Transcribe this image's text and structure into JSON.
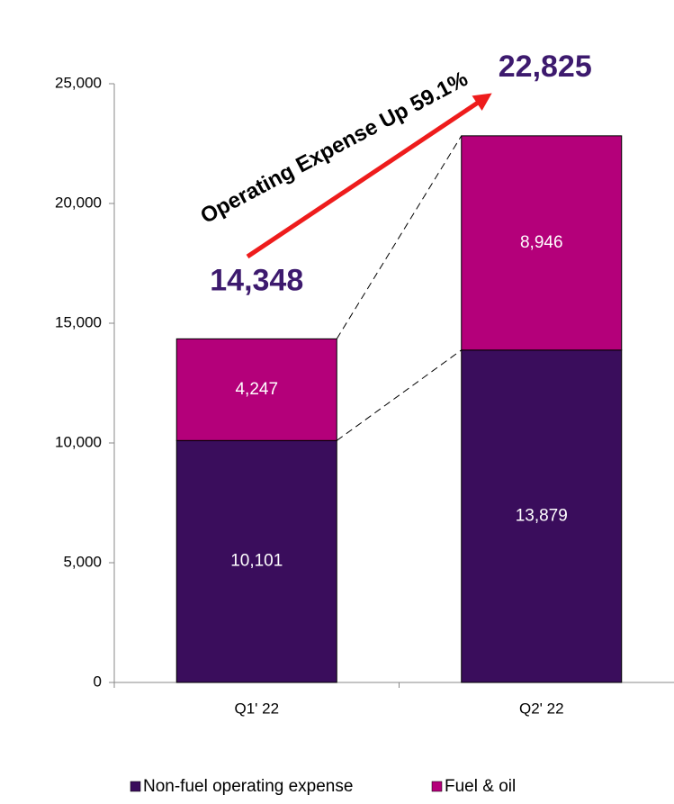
{
  "chart_data": {
    "type": "stacked-bar",
    "categories": [
      "Q1' 22",
      "Q2' 22"
    ],
    "series": [
      {
        "name": "Non-fuel operating expense",
        "color": "#3a0d5c",
        "values": [
          10101,
          13879
        ],
        "value_labels": [
          "10,101",
          "13,879"
        ]
      },
      {
        "name": "Fuel & oil",
        "color": "#b4007a",
        "values": [
          4247,
          8946
        ],
        "value_labels": [
          "4,247",
          "8,946"
        ]
      }
    ],
    "totals": {
      "values": [
        14348,
        22825
      ],
      "value_labels": [
        "14,348",
        "22,825"
      ],
      "color": "#3d1a6e"
    },
    "annotation": "Operating Expense  Up 59.1%",
    "ylim": [
      0,
      25000
    ],
    "yticks": [
      0,
      {
        "value": 5000,
        "label": "5,000"
      },
      {
        "value": 10000,
        "label": "10,000"
      },
      {
        "value": 15000,
        "label": "15,000"
      },
      {
        "value": 20000,
        "label": "20,000"
      },
      {
        "value": 25000,
        "label": "25,000"
      }
    ],
    "legend": "bottom"
  }
}
